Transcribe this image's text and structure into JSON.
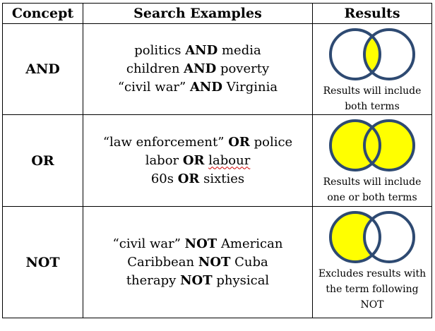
{
  "headers": {
    "concept": "Concept",
    "examples": "Search Examples",
    "results": "Results"
  },
  "colors": {
    "fill": "#ffff00",
    "stroke": "#2e4a72"
  },
  "rows": [
    {
      "concept": "AND",
      "venn": "intersection",
      "examples": [
        {
          "a": "politics",
          "op": "AND",
          "b": "media"
        },
        {
          "a": "children",
          "op": "AND",
          "b": "poverty"
        },
        {
          "a": "“civil war”",
          "op": "AND",
          "b": "Virginia"
        }
      ],
      "result_lines": [
        "Results will include",
        "both terms"
      ]
    },
    {
      "concept": "OR",
      "venn": "union",
      "examples": [
        {
          "a": "“law enforcement”",
          "op": "OR",
          "b": "police"
        },
        {
          "a": "labor",
          "op": "OR",
          "b": "labour"
        },
        {
          "a": "60s",
          "op": "OR",
          "b": "sixties"
        }
      ],
      "result_lines": [
        "Results will include",
        "one or both terms"
      ]
    },
    {
      "concept": "NOT",
      "venn": "difference",
      "examples": [
        {
          "a": "“civil war”",
          "op": "NOT",
          "b": "American"
        },
        {
          "a": "Caribbean",
          "op": "NOT",
          "b": "Cuba"
        },
        {
          "a": "therapy",
          "op": "NOT",
          "b": "physical"
        }
      ],
      "result_lines": [
        "Excludes results with",
        "the term following",
        "NOT"
      ]
    }
  ]
}
